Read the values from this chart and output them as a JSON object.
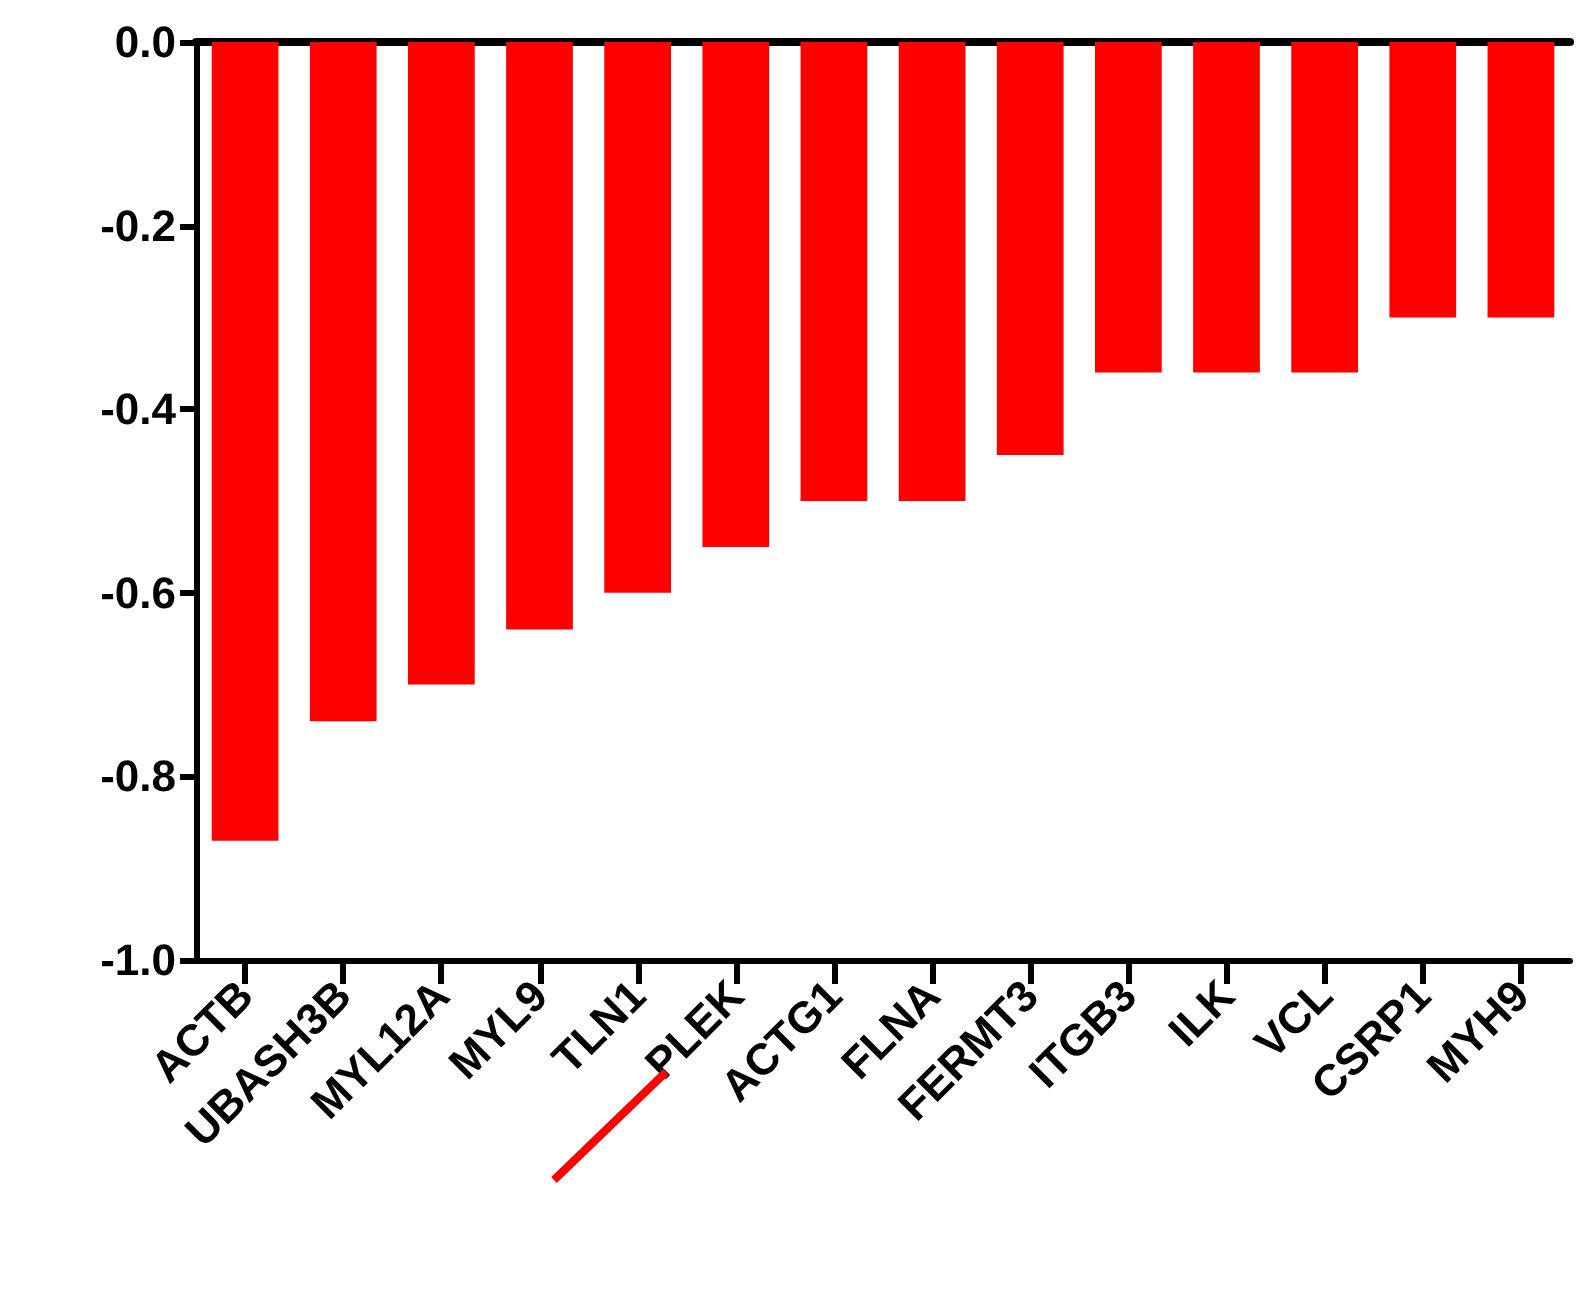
{
  "chart_data": {
    "type": "bar",
    "categories": [
      "ACTB",
      "UBASH3B",
      "MYL12A",
      "MYL9",
      "TLN1",
      "PLEK",
      "ACTG1",
      "FLNA",
      "FERMT3",
      "ITGB3",
      "ILK",
      "VCL",
      "CSRP1",
      "MYH9"
    ],
    "values": [
      -0.87,
      -0.74,
      -0.7,
      -0.64,
      -0.6,
      -0.55,
      -0.5,
      -0.5,
      -0.45,
      -0.36,
      -0.36,
      -0.36,
      -0.3,
      -0.3
    ],
    "color": "#ff0000",
    "ylim": [
      -1.0,
      0.0
    ],
    "yticks": [
      {
        "value": -1.0,
        "label": "-1.0"
      },
      {
        "value": -0.8,
        "label": "-0.8"
      },
      {
        "value": -0.6,
        "label": "-0.6"
      },
      {
        "value": -0.4,
        "label": "-0.4"
      },
      {
        "value": -0.2,
        "label": "-0.2"
      },
      {
        "value": 0.0,
        "label": "0.0"
      }
    ],
    "grid": false
  }
}
